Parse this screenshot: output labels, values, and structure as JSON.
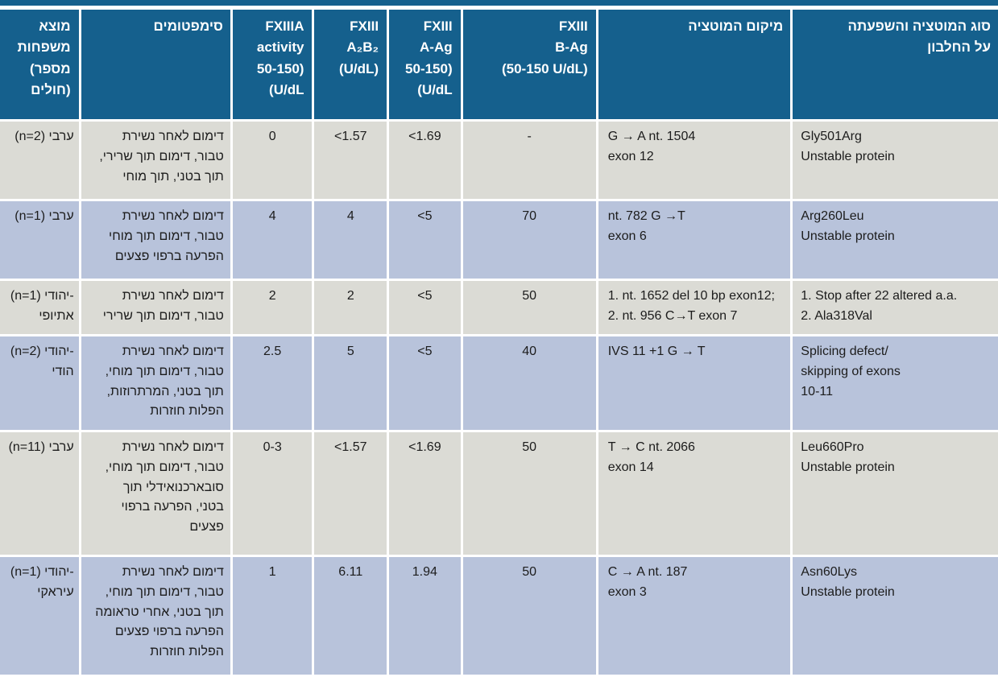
{
  "table": {
    "title_semantic": "FXIII deficiency mutations table",
    "headers": {
      "origin": "מוצא\nמשפחות\n(מספר\nחולים)",
      "symptoms": "סימפטומים",
      "activity": "FXIIIA\nactivity\n50-150)\n(U/dL",
      "a2b2": "FXIII\nA₂B₂\n(U/dL)",
      "aag": "FXIII\nA-Ag\n50-150)\n(U/dL",
      "bag": "FXIII\nB-Ag\n(50-150 U/dL)",
      "location": "מיקום המוטציה",
      "type": "סוג המוטציה והשפעתה\nעל החלבון"
    },
    "rows": [
      {
        "origin": "(n=2) ערבי",
        "symptoms": "דימום לאחר נשירת\nטבור,  דימום תוך שרירי,\nתוך בטני, תוך מוחי",
        "activity": "0",
        "a2b2": "<1.57",
        "aag": "<1.69",
        "bag": "-",
        "location": "G → A nt. 1504\nexon 12",
        "type": "Gly501Arg\nUnstable  protein"
      },
      {
        "origin": "(n=1) ערבי",
        "symptoms": "דימום לאחר נשירת\nטבור, דימום תוך מוחי\nהפרעה ברפוי פצעים",
        "activity": "4",
        "a2b2": "4",
        "aag": "<5",
        "bag": "70",
        "location": "nt. 782 G →T\nexon 6",
        "type": "Arg260Leu\nUnstable protein"
      },
      {
        "origin": "(n=1) יהודי-\nאתיופי",
        "symptoms": "דימום לאחר נשירת\nטבור, דימום תוך שרירי",
        "activity": "2",
        "a2b2": "2",
        "aag": "<5",
        "bag": "50",
        "location": "1. nt. 1652 del 10 bp exon12;\n2. nt. 956 C→T exon 7",
        "type": "1. Stop after 22 altered a.a.\n2. Ala318Val"
      },
      {
        "origin": "(n=2) יהודי-\nהודי",
        "symptoms": "דימום לאחר נשירת\nטבור, דימום תוך מוחי,\nתוך בטני, המרתרוזות,\nהפלות חוזרות",
        "activity": "2.5",
        "a2b2": "5",
        "aag": "<5",
        "bag": "40",
        "location": "IVS 11 +1 G → T",
        "type": "Splicing defect/\nskipping of exons\n10-11"
      },
      {
        "origin": "(n=11) ערבי",
        "symptoms": "דימום לאחר נשירת\nטבור, דימום תוך מוחי,\nסובארכנואידלי תוך\nבטני, הפרעה ברפוי\nפצעים",
        "activity": "0-3",
        "a2b2": "<1.57",
        "aag": "<1.69",
        "bag": "50",
        "location": "T → C nt. 2066\nexon 14",
        "type": "Leu660Pro\nUnstable  protein"
      },
      {
        "origin": "(n=1) יהודי-\nעיראקי",
        "symptoms": "דימום לאחר נשירת\nטבור, דימום תוך מוחי,\nתוך בטני, אחרי טראומה\nהפרעה ברפוי פצעים\nהפלות חוזרות",
        "activity": "1",
        "a2b2": "6.11",
        "aag": "1.94",
        "bag": "50",
        "location": "C → A nt. 187\nexon 3",
        "type": "Asn60Lys\nUnstable  protein"
      }
    ]
  },
  "colors": {
    "header_bg": "#15608d",
    "row_gray": "#dbdbd5",
    "row_blue": "#b8c3db",
    "header_text": "#ffffff",
    "body_text": "#1c1c1c"
  }
}
